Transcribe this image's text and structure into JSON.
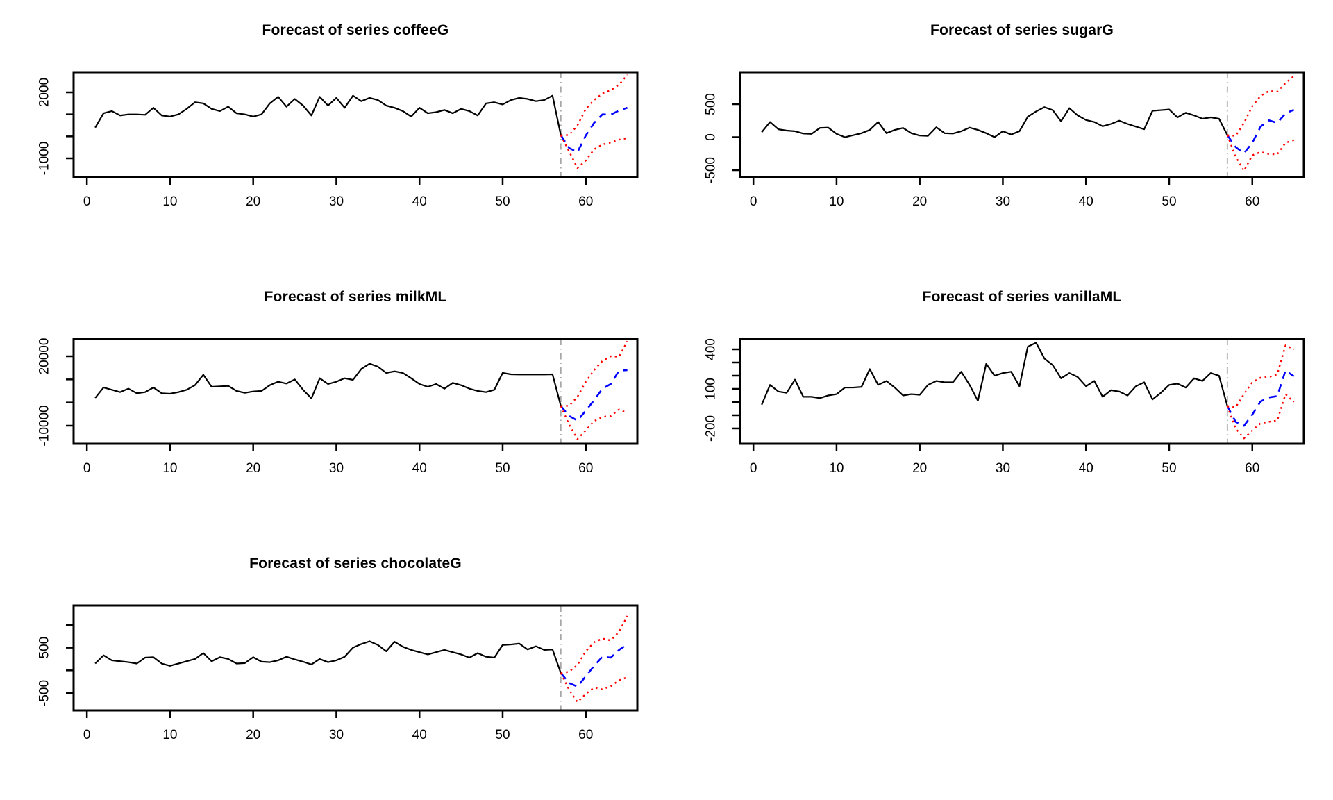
{
  "figure": {
    "background": "#ffffff",
    "grid": {
      "rows": 3,
      "cols": 2
    },
    "colors": {
      "observed": "#000000",
      "forecast_mean": "#0000ff",
      "interval": "#ff0000",
      "forecast_origin_line": "#a8a8a8"
    }
  },
  "chart_data": [
    {
      "type": "line",
      "title": "Forecast of series coffeeG",
      "position": {
        "row": 0,
        "col": 0
      },
      "xlim": [
        -1.6,
        66.2
      ],
      "ylim": [
        -1853,
        2916
      ],
      "xticks": [
        0,
        10,
        20,
        30,
        40,
        50,
        60
      ],
      "yticks": [
        {
          "value": 2000,
          "label": "2000"
        },
        {
          "value": 1000,
          "label": ""
        },
        {
          "value": 0,
          "label": ""
        },
        {
          "value": -1000,
          "label": "-1000"
        }
      ],
      "forecast_origin": {
        "x": 57,
        "color": "#a8a8a8",
        "style": "dashdot"
      },
      "legend": "none",
      "grid_lines": "off",
      "series": [
        {
          "name": "observed",
          "color": "#000000",
          "style": "solid",
          "x_start": 1,
          "values": [
            400,
            1050,
            1150,
            950,
            1000,
            1000,
            980,
            1300,
            950,
            900,
            1000,
            1250,
            1550,
            1500,
            1250,
            1150,
            1350,
            1050,
            1000,
            900,
            1000,
            1500,
            1800,
            1350,
            1700,
            1400,
            950,
            1800,
            1400,
            1750,
            1300,
            1850,
            1600,
            1750,
            1650,
            1400,
            1300,
            1150,
            900,
            1300,
            1050,
            1100,
            1200,
            1050,
            1250,
            1150,
            950,
            1500,
            1550,
            1450,
            1650,
            1750,
            1700,
            1600,
            1650,
            1850,
            50
          ]
        },
        {
          "name": "forecast-mean",
          "color": "#0000ff",
          "style": "dashed",
          "x_start": 57,
          "values": [
            50,
            -530,
            -720,
            40,
            610,
            1000,
            985,
            1175,
            1300
          ]
        },
        {
          "name": "upper-interval",
          "color": "#ff0000",
          "style": "dotted",
          "x_start": 57,
          "values": [
            50,
            60,
            500,
            1250,
            1650,
            1950,
            2100,
            2350,
            2800
          ]
        },
        {
          "name": "lower-interval",
          "color": "#ff0000",
          "style": "dotted",
          "x_start": 57,
          "values": [
            50,
            -690,
            -1440,
            -1100,
            -590,
            -370,
            -280,
            -150,
            -80
          ]
        }
      ]
    },
    {
      "type": "line",
      "title": "Forecast of series sugarG",
      "position": {
        "row": 0,
        "col": 1
      },
      "xlim": [
        -1.6,
        66.2
      ],
      "ylim": [
        -605,
        984
      ],
      "xticks": [
        0,
        10,
        20,
        30,
        40,
        50,
        60
      ],
      "yticks": [
        {
          "value": 500,
          "label": "500"
        },
        {
          "value": 0,
          "label": "0"
        },
        {
          "value": -500,
          "label": "-500"
        }
      ],
      "forecast_origin": {
        "x": 57,
        "color": "#a8a8a8",
        "style": "dashdot"
      },
      "legend": "none",
      "grid_lines": "off",
      "series": [
        {
          "name": "observed",
          "color": "#000000",
          "style": "solid",
          "x_start": 1,
          "values": [
            75,
            230,
            120,
            100,
            90,
            55,
            50,
            140,
            145,
            50,
            0,
            30,
            60,
            110,
            230,
            60,
            110,
            140,
            60,
            25,
            20,
            150,
            60,
            55,
            90,
            145,
            110,
            60,
            0,
            90,
            40,
            90,
            310,
            390,
            455,
            410,
            240,
            440,
            330,
            260,
            230,
            165,
            200,
            250,
            200,
            160,
            120,
            400,
            410,
            420,
            300,
            370,
            330,
            280,
            300,
            280,
            30
          ]
        },
        {
          "name": "forecast-mean",
          "color": "#0000ff",
          "style": "dashed",
          "x_start": 57,
          "values": [
            30,
            -150,
            -245,
            -85,
            160,
            255,
            215,
            360,
            415
          ]
        },
        {
          "name": "upper-interval",
          "color": "#ff0000",
          "style": "dotted",
          "x_start": 57,
          "values": [
            30,
            20,
            215,
            470,
            625,
            700,
            690,
            820,
            925
          ]
        },
        {
          "name": "lower-interval",
          "color": "#ff0000",
          "style": "dotted",
          "x_start": 57,
          "values": [
            30,
            -295,
            -510,
            -275,
            -225,
            -255,
            -260,
            -85,
            -45
          ]
        }
      ]
    },
    {
      "type": "line",
      "title": "Forecast of series milkML",
      "position": {
        "row": 1,
        "col": 0
      },
      "xlim": [
        -1.6,
        66.2
      ],
      "ylim": [
        -17800,
        27500
      ],
      "xticks": [
        0,
        10,
        20,
        30,
        40,
        50,
        60
      ],
      "yticks": [
        {
          "value": 20000,
          "label": "20000"
        },
        {
          "value": 10000,
          "label": ""
        },
        {
          "value": 0,
          "label": ""
        },
        {
          "value": -10000,
          "label": "-10000"
        }
      ],
      "forecast_origin": {
        "x": 57,
        "color": "#a8a8a8",
        "style": "dashdot"
      },
      "legend": "none",
      "grid_lines": "off",
      "series": [
        {
          "name": "observed",
          "color": "#000000",
          "style": "solid",
          "x_start": 1,
          "values": [
            2000,
            6500,
            5500,
            4500,
            6000,
            4000,
            4500,
            6500,
            4000,
            3800,
            4500,
            5500,
            7500,
            12000,
            6800,
            7000,
            7200,
            5000,
            4200,
            4800,
            5000,
            7500,
            9000,
            8200,
            10000,
            5500,
            1800,
            10500,
            8000,
            9000,
            10500,
            9800,
            14500,
            16800,
            15500,
            12800,
            13500,
            12800,
            10500,
            8000,
            6800,
            8000,
            6000,
            8500,
            7500,
            6000,
            5000,
            4500,
            5500,
            12800,
            12200,
            12100,
            12100,
            12100,
            12100,
            12200,
            -1500
          ]
        },
        {
          "name": "forecast-mean",
          "color": "#0000ff",
          "style": "dashed",
          "x_start": 57,
          "values": [
            -1500,
            -5800,
            -7800,
            -3500,
            1000,
            6000,
            8000,
            13800,
            14000
          ]
        },
        {
          "name": "upper-interval",
          "color": "#ff0000",
          "style": "dotted",
          "x_start": 57,
          "values": [
            -1500,
            -1400,
            2500,
            9000,
            14000,
            18000,
            20000,
            19800,
            26500
          ]
        },
        {
          "name": "lower-interval",
          "color": "#ff0000",
          "style": "dotted",
          "x_start": 57,
          "values": [
            -1500,
            -9500,
            -15800,
            -12000,
            -8000,
            -6200,
            -5800,
            -3000,
            -4500
          ]
        }
      ]
    },
    {
      "type": "line",
      "title": "Forecast of series vanillaML",
      "position": {
        "row": 1,
        "col": 1
      },
      "xlim": [
        -1.6,
        66.2
      ],
      "ylim": [
        -316,
        479
      ],
      "xticks": [
        0,
        10,
        20,
        30,
        40,
        50,
        60
      ],
      "yticks": [
        {
          "value": 400,
          "label": "400"
        },
        {
          "value": 300,
          "label": ""
        },
        {
          "value": 200,
          "label": ""
        },
        {
          "value": 100,
          "label": "100"
        },
        {
          "value": 0,
          "label": ""
        },
        {
          "value": -100,
          "label": ""
        },
        {
          "value": -200,
          "label": "-200"
        }
      ],
      "forecast_origin": {
        "x": 57,
        "color": "#a8a8a8",
        "style": "dashdot"
      },
      "legend": "none",
      "grid_lines": "off",
      "series": [
        {
          "name": "observed",
          "color": "#000000",
          "style": "solid",
          "x_start": 1,
          "values": [
            -20,
            130,
            80,
            70,
            170,
            40,
            40,
            30,
            50,
            60,
            110,
            110,
            115,
            250,
            130,
            160,
            110,
            50,
            60,
            55,
            130,
            160,
            150,
            150,
            230,
            130,
            10,
            290,
            200,
            220,
            230,
            120,
            420,
            450,
            330,
            280,
            180,
            220,
            190,
            120,
            160,
            40,
            90,
            80,
            50,
            120,
            150,
            20,
            70,
            130,
            140,
            110,
            180,
            160,
            220,
            200,
            -30
          ]
        },
        {
          "name": "forecast-mean",
          "color": "#0000ff",
          "style": "dashed",
          "x_start": 57,
          "values": [
            -30,
            -150,
            -180,
            -95,
            5,
            35,
            45,
            240,
            195
          ]
        },
        {
          "name": "upper-interval",
          "color": "#ff0000",
          "style": "dotted",
          "x_start": 57,
          "values": [
            -30,
            -40,
            60,
            150,
            185,
            190,
            210,
            430,
            400
          ]
        },
        {
          "name": "lower-interval",
          "color": "#ff0000",
          "style": "dotted",
          "x_start": 57,
          "values": [
            -30,
            -200,
            -275,
            -215,
            -160,
            -150,
            -140,
            60,
            0
          ]
        }
      ]
    },
    {
      "type": "line",
      "title": "Forecast of series chocolateG",
      "position": {
        "row": 2,
        "col": 0
      },
      "xlim": [
        -1.6,
        66.2
      ],
      "ylim": [
        -883,
        1428
      ],
      "xticks": [
        0,
        10,
        20,
        30,
        40,
        50,
        60
      ],
      "yticks": [
        {
          "value": 1000,
          "label": ""
        },
        {
          "value": 500,
          "label": "500"
        },
        {
          "value": 0,
          "label": ""
        },
        {
          "value": -500,
          "label": "-500"
        }
      ],
      "forecast_origin": {
        "x": 57,
        "color": "#a8a8a8",
        "style": "dashdot"
      },
      "legend": "none",
      "grid_lines": "off",
      "series": [
        {
          "name": "observed",
          "color": "#000000",
          "style": "solid",
          "x_start": 1,
          "values": [
            150,
            330,
            220,
            200,
            180,
            150,
            280,
            290,
            150,
            100,
            150,
            200,
            250,
            380,
            200,
            290,
            250,
            150,
            160,
            290,
            190,
            180,
            220,
            300,
            240,
            190,
            130,
            250,
            180,
            220,
            300,
            500,
            580,
            640,
            560,
            420,
            630,
            520,
            450,
            400,
            350,
            400,
            450,
            400,
            350,
            280,
            380,
            300,
            280,
            560,
            570,
            590,
            460,
            530,
            450,
            460,
            -60
          ]
        },
        {
          "name": "forecast-mean",
          "color": "#0000ff",
          "style": "dashed",
          "x_start": 57,
          "values": [
            -60,
            -280,
            -360,
            -130,
            100,
            300,
            280,
            450,
            580
          ]
        },
        {
          "name": "upper-interval",
          "color": "#ff0000",
          "style": "dotted",
          "x_start": 57,
          "values": [
            -60,
            -30,
            120,
            420,
            620,
            700,
            660,
            850,
            1200
          ]
        },
        {
          "name": "lower-interval",
          "color": "#ff0000",
          "style": "dotted",
          "x_start": 57,
          "values": [
            -60,
            -430,
            -700,
            -520,
            -380,
            -420,
            -350,
            -220,
            -150
          ]
        }
      ]
    }
  ]
}
